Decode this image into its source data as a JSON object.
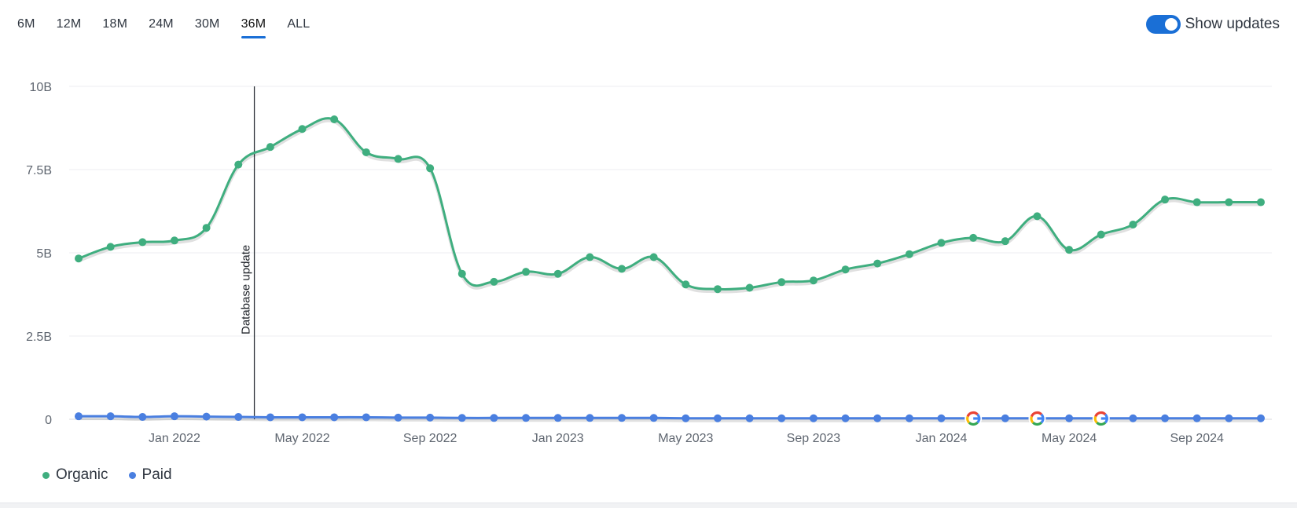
{
  "tabs": [
    "6M",
    "12M",
    "18M",
    "24M",
    "30M",
    "36M",
    "ALL"
  ],
  "active_tab": "36M",
  "toggle": {
    "label": "Show updates",
    "on": true
  },
  "colors": {
    "organic": "#3fae7f",
    "paid": "#4a7fe0",
    "accent": "#1a6fd6"
  },
  "legend": {
    "organic": "Organic",
    "paid": "Paid"
  },
  "chart_data": {
    "type": "line",
    "ylim": [
      0,
      10000000000
    ],
    "yticks": [
      {
        "value": 0,
        "label": "0"
      },
      {
        "value": 2500000000,
        "label": "2.5B"
      },
      {
        "value": 5000000000,
        "label": "5B"
      },
      {
        "value": 7500000000,
        "label": "7.5B"
      },
      {
        "value": 10000000000,
        "label": "10B"
      }
    ],
    "x": [
      "2021-10",
      "2021-11",
      "2021-12",
      "2022-01",
      "2022-02",
      "2022-03",
      "2022-04",
      "2022-05",
      "2022-06",
      "2022-07",
      "2022-08",
      "2022-09",
      "2022-10",
      "2022-11",
      "2022-12",
      "2023-01",
      "2023-02",
      "2023-03",
      "2023-04",
      "2023-05",
      "2023-06",
      "2023-07",
      "2023-08",
      "2023-09",
      "2023-10",
      "2023-11",
      "2023-12",
      "2024-01",
      "2024-02",
      "2024-03",
      "2024-04",
      "2024-05",
      "2024-06",
      "2024-07",
      "2024-08",
      "2024-09",
      "2024-10",
      "2024-11"
    ],
    "xticks": [
      {
        "index": 3,
        "label": "Jan 2022"
      },
      {
        "index": 7,
        "label": "May 2022"
      },
      {
        "index": 11,
        "label": "Sep 2022"
      },
      {
        "index": 15,
        "label": "Jan 2023"
      },
      {
        "index": 19,
        "label": "May 2023"
      },
      {
        "index": 23,
        "label": "Sep 2023"
      },
      {
        "index": 27,
        "label": "Jan 2024"
      },
      {
        "index": 31,
        "label": "May 2024"
      },
      {
        "index": 35,
        "label": "Sep 2024"
      }
    ],
    "series": [
      {
        "name": "Organic",
        "values": [
          4830000000,
          5180000000,
          5320000000,
          5370000000,
          5750000000,
          7650000000,
          8180000000,
          8720000000,
          9010000000,
          8020000000,
          7820000000,
          7540000000,
          4370000000,
          4130000000,
          4430000000,
          4370000000,
          4870000000,
          4520000000,
          4870000000,
          4050000000,
          3910000000,
          3950000000,
          4120000000,
          4170000000,
          4500000000,
          4680000000,
          4960000000,
          5300000000,
          5450000000,
          5350000000,
          6100000000,
          5090000000,
          5550000000,
          5850000000,
          6600000000,
          6520000000,
          6520000000,
          6520000000
        ]
      },
      {
        "name": "Paid",
        "values": [
          90000000,
          90000000,
          70000000,
          90000000,
          80000000,
          70000000,
          60000000,
          60000000,
          60000000,
          60000000,
          50000000,
          50000000,
          40000000,
          40000000,
          40000000,
          40000000,
          40000000,
          40000000,
          40000000,
          30000000,
          30000000,
          30000000,
          30000000,
          30000000,
          30000000,
          30000000,
          30000000,
          30000000,
          30000000,
          30000000,
          30000000,
          30000000,
          30000000,
          30000000,
          30000000,
          30000000,
          30000000,
          30000000
        ]
      }
    ],
    "annotations": [
      {
        "index": 5.5,
        "label": "Database update"
      }
    ],
    "google_update_markers": [
      28,
      30,
      32
    ],
    "grid": true,
    "legend_position": "bottom-left"
  }
}
